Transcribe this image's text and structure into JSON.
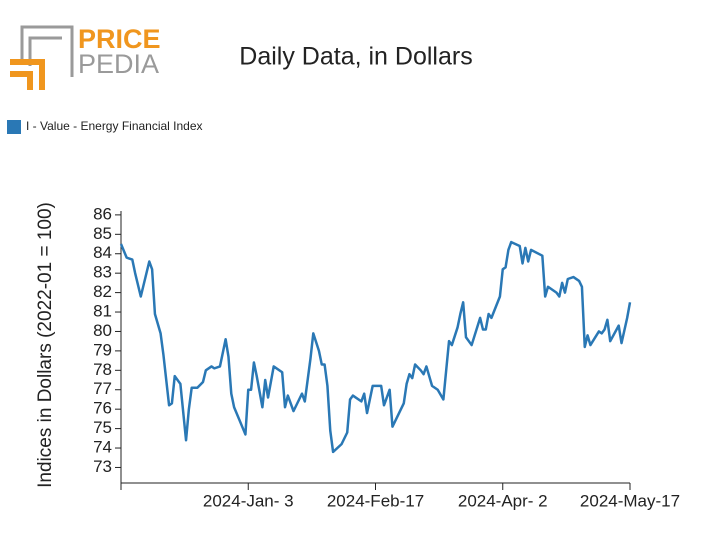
{
  "logo": {
    "first": "PRICE",
    "second": "PEDIA"
  },
  "chart_data": {
    "type": "line",
    "title": "Daily Data, in Dollars",
    "y_label": "Indices in Dollars (2022-01 = 100)",
    "legend_position": "top-left",
    "ylim": [
      72.2,
      86.2
    ],
    "yticks": [
      73,
      74,
      75,
      76,
      77,
      78,
      79,
      80,
      81,
      82,
      83,
      84,
      85,
      86
    ],
    "xlim": [
      "2023-11-19",
      "2024-05-17"
    ],
    "xticks": [
      {
        "value": "2023-11-19",
        "label": null
      },
      {
        "value": "2024-01-03",
        "label": "2024-Jan- 3"
      },
      {
        "value": "2024-02-17",
        "label": "2024-Feb-17"
      },
      {
        "value": "2024-04-02",
        "label": "2024-Apr- 2"
      },
      {
        "value": "2024-05-17",
        "label": "2024-May-17"
      }
    ],
    "x": [
      "2023-11-19",
      "2023-11-21",
      "2023-11-23",
      "2023-11-24",
      "2023-11-26",
      "2023-11-29",
      "2023-11-30",
      "2023-12-01",
      "2023-12-03",
      "2023-12-04",
      "2023-12-06",
      "2023-12-07",
      "2023-12-08",
      "2023-12-10",
      "2023-12-12",
      "2023-12-13",
      "2023-12-14",
      "2023-12-16",
      "2023-12-18",
      "2023-12-19",
      "2023-12-21",
      "2023-12-22",
      "2023-12-24",
      "2023-12-26",
      "2023-12-27",
      "2023-12-28",
      "2023-12-29",
      "2023-12-31",
      "2024-01-02",
      "2024-01-03",
      "2024-01-04",
      "2024-01-05",
      "2024-01-06",
      "2024-01-08",
      "2024-01-09",
      "2024-01-10",
      "2024-01-12",
      "2024-01-15",
      "2024-01-16",
      "2024-01-17",
      "2024-01-19",
      "2024-01-22",
      "2024-01-23",
      "2024-01-25",
      "2024-01-26",
      "2024-01-28",
      "2024-01-29",
      "2024-01-30",
      "2024-01-31",
      "2024-02-01",
      "2024-02-02",
      "2024-02-05",
      "2024-02-07",
      "2024-02-08",
      "2024-02-09",
      "2024-02-12",
      "2024-02-13",
      "2024-02-14",
      "2024-02-16",
      "2024-02-19",
      "2024-02-20",
      "2024-02-22",
      "2024-02-23",
      "2024-02-27",
      "2024-02-28",
      "2024-02-29",
      "2024-03-01",
      "2024-03-02",
      "2024-03-04",
      "2024-03-05",
      "2024-03-06",
      "2024-03-08",
      "2024-03-10",
      "2024-03-12",
      "2024-03-13",
      "2024-03-14",
      "2024-03-15",
      "2024-03-17",
      "2024-03-18",
      "2024-03-19",
      "2024-03-20",
      "2024-03-22",
      "2024-03-25",
      "2024-03-26",
      "2024-03-27",
      "2024-03-28",
      "2024-03-29",
      "2024-04-01",
      "2024-04-02",
      "2024-04-03",
      "2024-04-04",
      "2024-04-05",
      "2024-04-08",
      "2024-04-09",
      "2024-04-10",
      "2024-04-11",
      "2024-04-12",
      "2024-04-16",
      "2024-04-17",
      "2024-04-18",
      "2024-04-21",
      "2024-04-22",
      "2024-04-23",
      "2024-04-24",
      "2024-04-25",
      "2024-04-27",
      "2024-04-29",
      "2024-04-30",
      "2024-05-01",
      "2024-05-02",
      "2024-05-03",
      "2024-05-06",
      "2024-05-07",
      "2024-05-08",
      "2024-05-09",
      "2024-05-10",
      "2024-05-13",
      "2024-05-14",
      "2024-05-16",
      "2024-05-17"
    ],
    "series": [
      {
        "name": "I - Value - Energy Financial Index",
        "color": "#2a78b5",
        "values": [
          84.5,
          83.8,
          83.7,
          83.0,
          81.8,
          83.6,
          83.2,
          80.9,
          79.9,
          78.8,
          76.2,
          76.3,
          77.7,
          77.3,
          74.4,
          76.0,
          77.1,
          77.1,
          77.4,
          78.0,
          78.2,
          78.1,
          78.2,
          79.6,
          78.7,
          76.8,
          76.1,
          75.4,
          74.7,
          77.0,
          77.0,
          78.4,
          77.7,
          76.1,
          77.5,
          76.6,
          78.2,
          77.9,
          76.1,
          76.7,
          75.9,
          76.8,
          76.4,
          78.6,
          79.9,
          79.0,
          78.3,
          78.3,
          77.2,
          74.9,
          73.8,
          74.2,
          74.8,
          76.5,
          76.7,
          76.4,
          76.8,
          75.8,
          77.2,
          77.2,
          76.2,
          77.0,
          75.1,
          76.3,
          77.3,
          77.8,
          77.6,
          78.3,
          78.0,
          77.8,
          78.2,
          77.2,
          77.0,
          76.5,
          78.0,
          79.5,
          79.3,
          80.2,
          80.9,
          81.5,
          79.7,
          79.3,
          80.7,
          80.1,
          80.1,
          80.9,
          80.7,
          81.8,
          83.2,
          83.3,
          84.2,
          84.6,
          84.4,
          83.5,
          84.3,
          83.6,
          84.2,
          83.9,
          81.8,
          82.3,
          82.0,
          81.8,
          82.5,
          82.0,
          82.7,
          82.8,
          82.6,
          82.3,
          79.2,
          79.8,
          79.3,
          80.0,
          79.9,
          80.1,
          80.6,
          79.5,
          80.3,
          79.4,
          80.7,
          81.5
        ]
      }
    ]
  }
}
